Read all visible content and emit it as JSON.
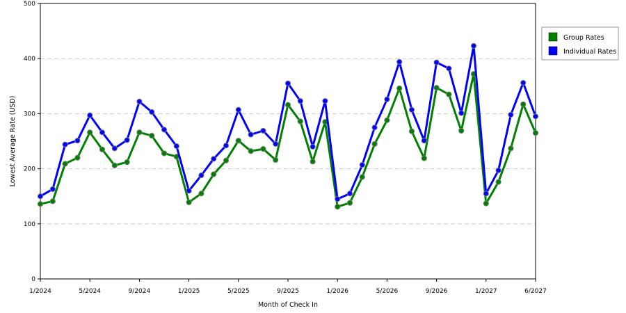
{
  "chart_data": {
    "type": "line",
    "title": "",
    "xlabel": "Month of Check In",
    "ylabel": "Lowest Average Rate (USD)",
    "ylim": [
      0,
      500
    ],
    "yticks": [
      0,
      100,
      200,
      300,
      400,
      500
    ],
    "grid": true,
    "legend_position": "top-right",
    "x_ticks": [
      {
        "index": 0,
        "label": "1/2024"
      },
      {
        "index": 4,
        "label": "5/2024"
      },
      {
        "index": 8,
        "label": "9/2024"
      },
      {
        "index": 12,
        "label": "1/2025"
      },
      {
        "index": 16,
        "label": "5/2025"
      },
      {
        "index": 20,
        "label": "9/2025"
      },
      {
        "index": 24,
        "label": "1/2026"
      },
      {
        "index": 28,
        "label": "5/2026"
      },
      {
        "index": 32,
        "label": "9/2026"
      },
      {
        "index": 36,
        "label": "1/2027"
      },
      {
        "index": 40,
        "label": "6/2027"
      }
    ],
    "months": [
      "1/2024",
      "2/2024",
      "3/2024",
      "4/2024",
      "5/2024",
      "6/2024",
      "7/2024",
      "8/2024",
      "9/2024",
      "10/2024",
      "11/2024",
      "12/2024",
      "1/2025",
      "2/2025",
      "3/2025",
      "4/2025",
      "5/2025",
      "6/2025",
      "7/2025",
      "8/2025",
      "9/2025",
      "10/2025",
      "11/2025",
      "12/2025",
      "1/2026",
      "2/2026",
      "3/2026",
      "4/2026",
      "5/2026",
      "6/2026",
      "7/2026",
      "8/2026",
      "9/2026",
      "10/2026",
      "11/2026",
      "12/2026",
      "1/2027",
      "2/2027",
      "3/2027",
      "4/2027",
      "6/2027"
    ],
    "series": [
      {
        "name": "Group Rates",
        "color": "#008000",
        "values": [
          136,
          141,
          209,
          220,
          266,
          235,
          206,
          212,
          266,
          260,
          228,
          222,
          139,
          155,
          190,
          215,
          251,
          232,
          236,
          216,
          316,
          286,
          213,
          285,
          131,
          138,
          185,
          245,
          288,
          346,
          268,
          219,
          347,
          335,
          269,
          372,
          137,
          176,
          237,
          317,
          265
        ]
      },
      {
        "name": "Individual Rates",
        "color": "#0000ff",
        "values": [
          150,
          163,
          244,
          251,
          297,
          266,
          237,
          252,
          322,
          303,
          271,
          241,
          160,
          188,
          218,
          242,
          307,
          262,
          269,
          245,
          355,
          323,
          240,
          323,
          145,
          155,
          207,
          275,
          326,
          394,
          307,
          251,
          393,
          382,
          301,
          423,
          155,
          197,
          298,
          356,
          295
        ]
      }
    ]
  }
}
